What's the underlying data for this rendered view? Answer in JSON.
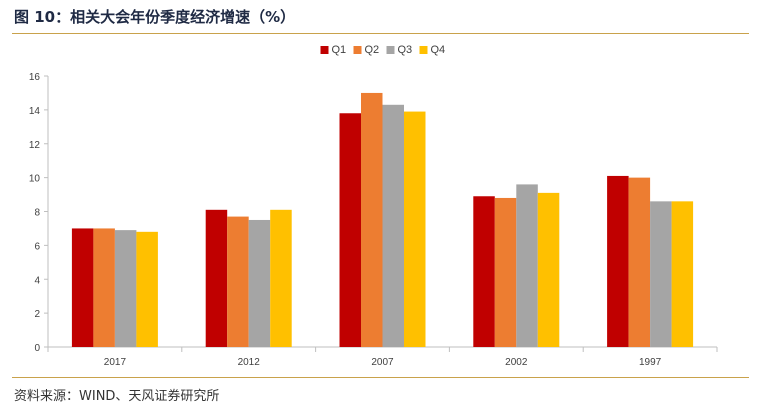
{
  "figure": {
    "title": "图 10：相关大会年份季度经济增速（%）",
    "source": "资料来源：WIND、天风证券研究所"
  },
  "chart_data": {
    "type": "bar",
    "categories": [
      "2017",
      "2012",
      "2007",
      "2002",
      "1997"
    ],
    "series": [
      {
        "name": "Q1",
        "color": "#c00000",
        "values": [
          7.0,
          8.1,
          13.8,
          8.9,
          10.1
        ]
      },
      {
        "name": "Q2",
        "color": "#ed7d31",
        "values": [
          7.0,
          7.7,
          15.0,
          8.8,
          10.0
        ]
      },
      {
        "name": "Q3",
        "color": "#a5a5a5",
        "values": [
          6.9,
          7.5,
          14.3,
          9.6,
          8.6
        ]
      },
      {
        "name": "Q4",
        "color": "#ffc000",
        "values": [
          6.8,
          8.1,
          13.9,
          9.1,
          8.6
        ]
      }
    ],
    "ylim": [
      0,
      16
    ],
    "yticks": [
      0,
      2,
      4,
      6,
      8,
      10,
      12,
      14,
      16
    ],
    "xlabel": "",
    "ylabel": "",
    "grid": false,
    "legend_position": "top-center"
  }
}
